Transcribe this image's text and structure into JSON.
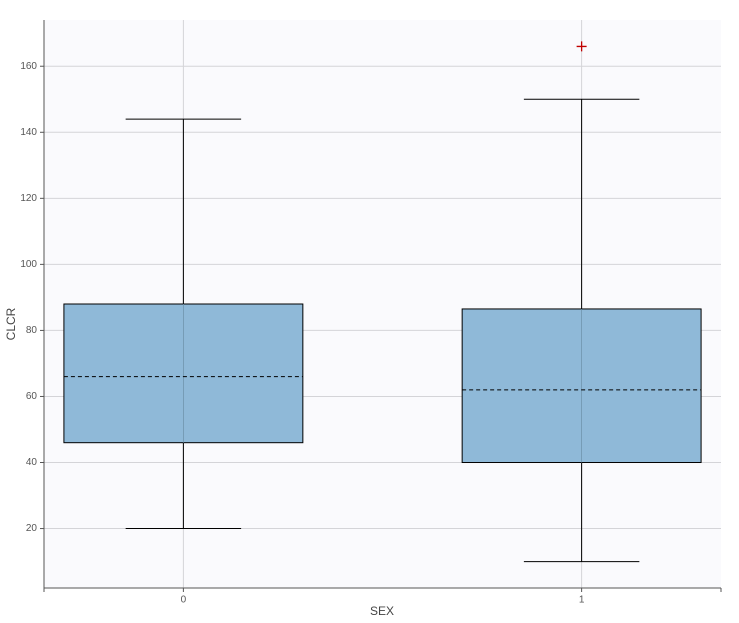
{
  "chart_data": {
    "type": "box",
    "x_label": "SEX",
    "y_label": "CLCR",
    "categories": [
      "0",
      "1"
    ],
    "boxes": [
      {
        "min": 20,
        "q1": 46,
        "median": 66,
        "q3": 88,
        "max": 144,
        "outliers": []
      },
      {
        "min": 10,
        "q1": 40,
        "median": 62,
        "q3": 86.5,
        "max": 150,
        "outliers": [
          166
        ]
      }
    ],
    "color": "#8fb9d8",
    "outlier_color": "#c00000",
    "ylim": [
      2,
      174
    ],
    "yticks": [
      20,
      40,
      60,
      80,
      100,
      120,
      140,
      160
    ],
    "grid": true
  }
}
